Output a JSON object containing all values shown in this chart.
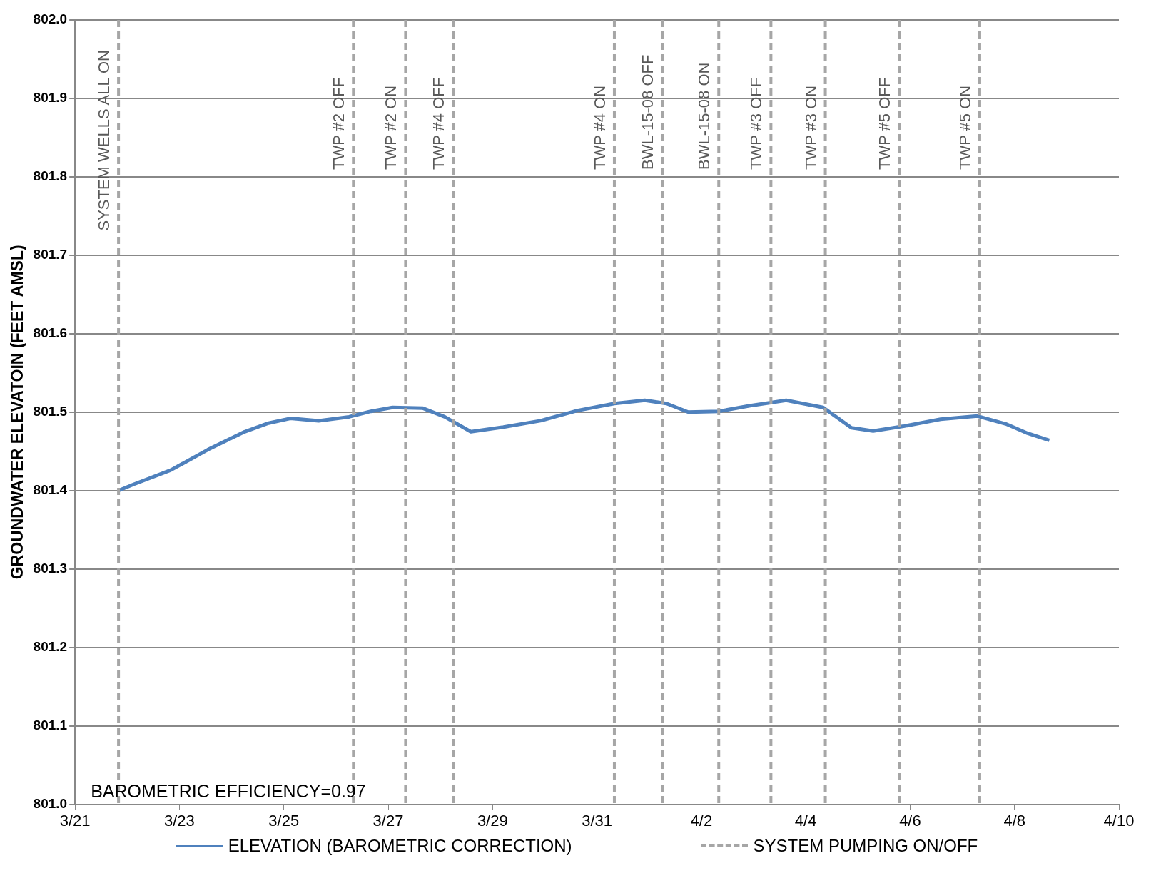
{
  "chart_data": {
    "type": "line",
    "ylabel": "GROUNDWATER ELEVATOIN (FEET AMSL)",
    "x": [
      "--03-21T20:00",
      "--03-22T03:00",
      "--03-22T20:00",
      "--03-23T13:00",
      "--03-24T06:00",
      "--03-24T17:00",
      "--03-25T03:00",
      "--03-25T16:00",
      "--03-26T06:00",
      "--03-26T16:00",
      "--03-27T02:00",
      "--03-27T16:00",
      "--03-28T02:00",
      "--03-28T14:00",
      "--03-29T05:00",
      "--03-29T22:00",
      "--03-30T15:00",
      "--03-31T08:00",
      "--03-31T22:00",
      "--04-01T08:00",
      "--04-01T18:00",
      "--04-02T08:00",
      "--04-02T22:00",
      "--04-03T15:00",
      "--04-04T08:00",
      "--04-04T21:00",
      "--04-05T07:00",
      "--04-05T21:00",
      "--04-06T14:00",
      "--04-07T07:00",
      "--04-07T20:00",
      "--04-08T06:00",
      "--04-08T16:00"
    ],
    "series": [
      {
        "name": "ELEVATION (BAROMETRIC CORRECTION)",
        "color": "#4f81bd",
        "values": [
          801.4,
          801.408,
          801.426,
          801.452,
          801.475,
          801.486,
          801.492,
          801.489,
          801.494,
          801.501,
          801.506,
          801.505,
          801.494,
          801.475,
          801.481,
          801.489,
          801.502,
          801.511,
          801.515,
          801.511,
          801.5,
          801.501,
          801.508,
          801.515,
          801.506,
          801.48,
          801.476,
          801.482,
          801.491,
          801.495,
          801.485,
          801.473,
          801.464
        ]
      }
    ],
    "xlim": [
      "--03-21",
      "--04-10"
    ],
    "xticks": [
      {
        "value": "--03-21",
        "label": "3/21"
      },
      {
        "value": "--03-23",
        "label": "3/23"
      },
      {
        "value": "--03-25",
        "label": "3/25"
      },
      {
        "value": "--03-27",
        "label": "3/27"
      },
      {
        "value": "--03-29",
        "label": "3/29"
      },
      {
        "value": "--03-31",
        "label": "3/31"
      },
      {
        "value": "--04-02",
        "label": "4/2"
      },
      {
        "value": "--04-04",
        "label": "4/4"
      },
      {
        "value": "--04-06",
        "label": "4/6"
      },
      {
        "value": "--04-08",
        "label": "4/8"
      },
      {
        "value": "--04-10",
        "label": "4/10"
      }
    ],
    "ylim": [
      801.0,
      802.0
    ],
    "yticks": [
      {
        "value": 801.0,
        "label": "801.0"
      },
      801.1,
      801.2,
      801.3,
      801.4,
      801.5,
      801.6,
      801.7,
      801.8,
      801.9,
      {
        "value": 802.0,
        "label": "802.0"
      }
    ],
    "grid": "y",
    "legend": "bottom",
    "marker": "none",
    "line_style": "solid",
    "ref_lines": [
      {
        "axis": "x",
        "value": "--03-21T20:00",
        "label": "SYSTEM WELLS ALL ON",
        "color": "#a6a6a6",
        "line_style": "dashed"
      },
      {
        "axis": "x",
        "value": "--03-26T08:00",
        "label": "TWP #2 OFF",
        "color": "#a6a6a6",
        "line_style": "dashed"
      },
      {
        "axis": "x",
        "value": "--03-27T08:00",
        "label": "TWP #2 ON",
        "color": "#a6a6a6",
        "line_style": "dashed"
      },
      {
        "axis": "x",
        "value": "--03-28T06:00",
        "label": "TWP #4 OFF",
        "color": "#a6a6a6",
        "line_style": "dashed"
      },
      {
        "axis": "x",
        "value": "--03-31T08:00",
        "label": "TWP #4 ON",
        "color": "#a6a6a6",
        "line_style": "dashed"
      },
      {
        "axis": "x",
        "value": "--04-01T06:00",
        "label": "BWL-15-08 OFF",
        "color": "#a6a6a6",
        "line_style": "dashed"
      },
      {
        "axis": "x",
        "value": "--04-02T08:00",
        "label": "BWL-15-08 ON",
        "color": "#a6a6a6",
        "line_style": "dashed"
      },
      {
        "axis": "x",
        "value": "--04-03T08:00",
        "label": "TWP #3 OFF",
        "color": "#a6a6a6",
        "line_style": "dashed"
      },
      {
        "axis": "x",
        "value": "--04-04T09:00",
        "label": "TWP #3 ON",
        "color": "#a6a6a6",
        "line_style": "dashed"
      },
      {
        "axis": "x",
        "value": "--04-05T19:00",
        "label": "TWP #5 OFF",
        "color": "#a6a6a6",
        "line_style": "dashed"
      },
      {
        "axis": "x",
        "value": "--04-07T08:00",
        "label": "TWP #5 ON",
        "color": "#a6a6a6",
        "line_style": "dashed"
      }
    ],
    "annotations": [
      "BAROMETRIC EFFICIENCY=0.97",
      "SYSTEM PUMPING ON/OFF"
    ]
  }
}
